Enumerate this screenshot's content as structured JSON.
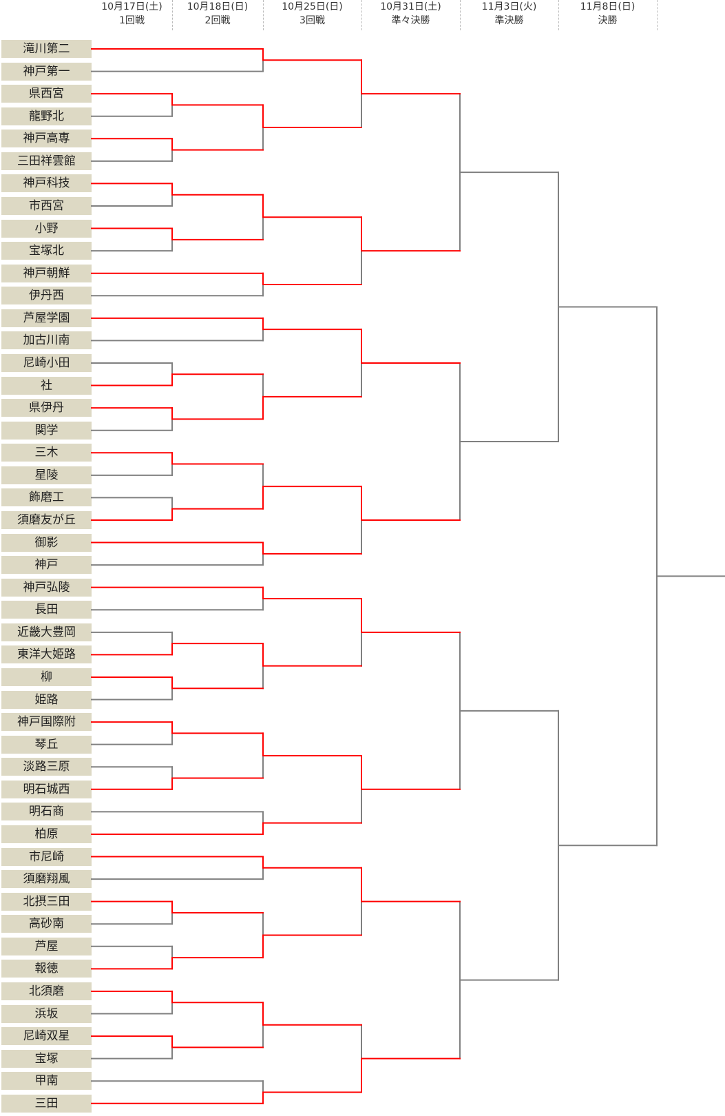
{
  "header": {
    "rounds": [
      {
        "date": "10月17日(土)",
        "label": "1回戦"
      },
      {
        "date": "10月18日(日)",
        "label": "2回戦"
      },
      {
        "date": "10月25日(日)",
        "label": "3回戦"
      },
      {
        "date": "10月31日(土)",
        "label": "準々決勝"
      },
      {
        "date": "11月3日(火)",
        "label": "準決勝"
      },
      {
        "date": "11月8日(日)",
        "label": "決勝"
      }
    ]
  },
  "colors": {
    "winner_line": "#ff0000",
    "line": "#808080",
    "team_bg": "#ddd9c4"
  },
  "teams": [
    "滝川第二",
    "神戸第一",
    "県西宮",
    "龍野北",
    "神戸高専",
    "三田祥雲館",
    "神戸科技",
    "市西宮",
    "小野",
    "宝塚北",
    "神戸朝鮮",
    "伊丹西",
    "芦屋学園",
    "加古川南",
    "尼崎小田",
    "社",
    "県伊丹",
    "関学",
    "三木",
    "星陵",
    "飾磨工",
    "須磨友が丘",
    "御影",
    "神戸",
    "神戸弘陵",
    "長田",
    "近畿大豊岡",
    "東洋大姫路",
    "柳",
    "姫路",
    "神戸国際附",
    "琴丘",
    "淡路三原",
    "明石城西",
    "明石商",
    "柏原",
    "市尼崎",
    "須磨翔風",
    "北摂三田",
    "高砂南",
    "芦屋",
    "報徳",
    "北須磨",
    "浜坂",
    "尼崎双星",
    "宝塚",
    "甲南",
    "三田"
  ],
  "bracket": {
    "r": 6,
    "w": null,
    "c": [
      {
        "r": 5,
        "w": null,
        "c": [
          {
            "r": 4,
            "w": null,
            "c": [
              {
                "r": 3,
                "w": 0,
                "c": [
                  {
                    "r": 2,
                    "w": 0,
                    "c": [
                      0,
                      1
                    ]
                  },
                  {
                    "r": 2,
                    "w": 0,
                    "c": [
                      {
                        "r": 1,
                        "w": 0,
                        "c": [
                          2,
                          3
                        ]
                      },
                      {
                        "r": 1,
                        "w": 0,
                        "c": [
                          4,
                          5
                        ]
                      }
                    ]
                  }
                ]
              },
              {
                "r": 3,
                "w": 0,
                "c": [
                  {
                    "r": 2,
                    "w": 0,
                    "c": [
                      {
                        "r": 1,
                        "w": 0,
                        "c": [
                          6,
                          7
                        ]
                      },
                      {
                        "r": 1,
                        "w": 0,
                        "c": [
                          8,
                          9
                        ]
                      }
                    ]
                  },
                  {
                    "r": 2,
                    "w": 0,
                    "c": [
                      10,
                      11
                    ]
                  }
                ]
              }
            ]
          },
          {
            "r": 4,
            "w": null,
            "c": [
              {
                "r": 3,
                "w": 0,
                "c": [
                  {
                    "r": 2,
                    "w": 0,
                    "c": [
                      12,
                      13
                    ]
                  },
                  {
                    "r": 2,
                    "w": 1,
                    "c": [
                      {
                        "r": 1,
                        "w": 1,
                        "c": [
                          14,
                          15
                        ]
                      },
                      {
                        "r": 1,
                        "w": 0,
                        "c": [
                          16,
                          17
                        ]
                      }
                    ]
                  }
                ]
              },
              {
                "r": 3,
                "w": 0,
                "c": [
                  {
                    "r": 2,
                    "w": 1,
                    "c": [
                      {
                        "r": 1,
                        "w": 0,
                        "c": [
                          18,
                          19
                        ]
                      },
                      {
                        "r": 1,
                        "w": 1,
                        "c": [
                          20,
                          21
                        ]
                      }
                    ]
                  },
                  {
                    "r": 2,
                    "w": 0,
                    "c": [
                      22,
                      23
                    ]
                  }
                ]
              }
            ]
          }
        ]
      },
      {
        "r": 5,
        "w": null,
        "c": [
          {
            "r": 4,
            "w": null,
            "c": [
              {
                "r": 3,
                "w": 0,
                "c": [
                  {
                    "r": 2,
                    "w": 0,
                    "c": [
                      24,
                      25
                    ]
                  },
                  {
                    "r": 2,
                    "w": 0,
                    "c": [
                      {
                        "r": 1,
                        "w": 1,
                        "c": [
                          26,
                          27
                        ]
                      },
                      {
                        "r": 1,
                        "w": 0,
                        "c": [
                          28,
                          29
                        ]
                      }
                    ]
                  }
                ]
              },
              {
                "r": 3,
                "w": 0,
                "c": [
                  {
                    "r": 2,
                    "w": 0,
                    "c": [
                      {
                        "r": 1,
                        "w": 0,
                        "c": [
                          30,
                          31
                        ]
                      },
                      {
                        "r": 1,
                        "w": 1,
                        "c": [
                          32,
                          33
                        ]
                      }
                    ]
                  },
                  {
                    "r": 2,
                    "w": 1,
                    "c": [
                      34,
                      35
                    ]
                  }
                ]
              }
            ]
          },
          {
            "r": 4,
            "w": null,
            "c": [
              {
                "r": 3,
                "w": 0,
                "c": [
                  {
                    "r": 2,
                    "w": 0,
                    "c": [
                      36,
                      37
                    ]
                  },
                  {
                    "r": 2,
                    "w": 1,
                    "c": [
                      {
                        "r": 1,
                        "w": 0,
                        "c": [
                          38,
                          39
                        ]
                      },
                      {
                        "r": 1,
                        "w": 1,
                        "c": [
                          40,
                          41
                        ]
                      }
                    ]
                  }
                ]
              },
              {
                "r": 3,
                "w": 1,
                "c": [
                  {
                    "r": 2,
                    "w": 0,
                    "c": [
                      {
                        "r": 1,
                        "w": 0,
                        "c": [
                          42,
                          43
                        ]
                      },
                      {
                        "r": 1,
                        "w": 0,
                        "c": [
                          44,
                          45
                        ]
                      }
                    ]
                  },
                  {
                    "r": 2,
                    "w": 1,
                    "c": [
                      46,
                      47
                    ]
                  }
                ]
              }
            ]
          }
        ]
      }
    ]
  }
}
